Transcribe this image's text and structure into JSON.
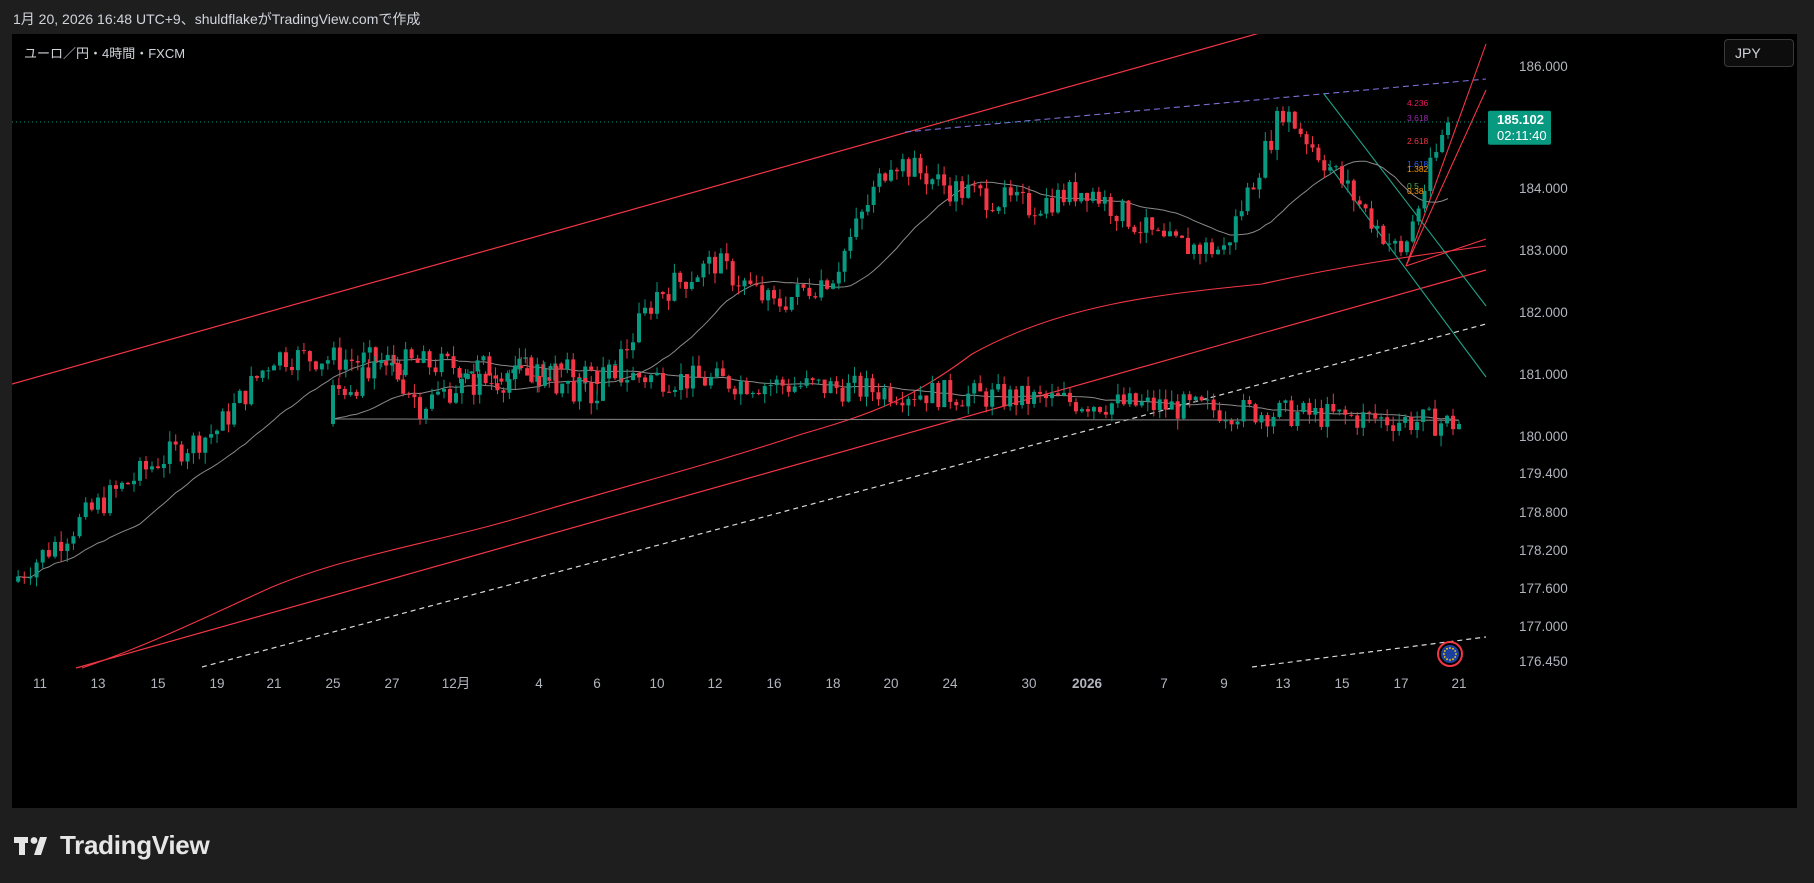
{
  "header": {
    "caption": "1月 20, 2026 16:48 UTC+9、shuldflakeがTradingView.comで作成"
  },
  "symbol": {
    "title": "ユーロ／円・4時間・FXCM"
  },
  "currency_button": {
    "label": "JPY"
  },
  "price_badge": {
    "price": "185.102",
    "countdown": "02:11:40",
    "color": "#089981"
  },
  "brand": {
    "name": "TradingView",
    "logo_icon": "tradingview-logo-icon"
  },
  "news_icon": "eu-flag-icon",
  "chart_data": {
    "type": "candlestick",
    "title": "",
    "x_tick_labels": [
      "11",
      "13",
      "15",
      "19",
      "21",
      "25",
      "27",
      "12月",
      "4",
      "6",
      "10",
      "12",
      "16",
      "18",
      "20",
      "24",
      "30",
      "2026",
      "7",
      "9",
      "13",
      "15",
      "17",
      "21"
    ],
    "y_tick_labels": [
      "186.000",
      "184.000",
      "183.000",
      "182.000",
      "181.000",
      "180.000",
      "179.400",
      "178.800",
      "178.200",
      "177.600",
      "177.000",
      "176.450"
    ],
    "ylim": [
      176.2,
      186.4
    ],
    "last_price": 185.102,
    "colors": {
      "up": "#089981",
      "down": "#f23645",
      "moving_average": "#8a8a8a",
      "channel": "#f23645",
      "fib_channel": "#1ea189",
      "high_line": "#7b6fd6",
      "support": "#d9d9d9"
    },
    "price_path": [
      {
        "x": "11",
        "close": 177.7
      },
      {
        "x": "13",
        "close": 178.9
      },
      {
        "x": "15",
        "close": 179.6
      },
      {
        "x": "19",
        "close": 180.1
      },
      {
        "x": "21",
        "close": 181.3
      },
      {
        "x": "21",
        "close": 180.2
      },
      {
        "x": "25",
        "close": 180.7
      },
      {
        "x": "27",
        "close": 181.1
      },
      {
        "x": "27",
        "close": 180.5
      },
      {
        "x": "12月",
        "close": 180.8
      },
      {
        "x": "4",
        "close": 181.0
      },
      {
        "x": "6",
        "close": 180.6
      },
      {
        "x": "10",
        "close": 182.3
      },
      {
        "x": "12",
        "close": 182.8
      },
      {
        "x": "16",
        "close": 182.1
      },
      {
        "x": "18",
        "close": 182.6
      },
      {
        "x": "20",
        "close": 184.5
      },
      {
        "x": "24",
        "close": 184.0
      },
      {
        "x": "30",
        "close": 183.7
      },
      {
        "x": "2026",
        "close": 184.0
      },
      {
        "x": "7",
        "close": 183.1
      },
      {
        "x": "9",
        "close": 183.0
      },
      {
        "x": "13",
        "close": 185.3
      },
      {
        "x": "15",
        "close": 184.1
      },
      {
        "x": "17",
        "close": 182.9
      },
      {
        "x": "21",
        "close": 185.1
      }
    ],
    "fib_levels": [
      {
        "label": "4.236",
        "color": "#e91e63"
      },
      {
        "label": "3.618",
        "color": "#9c27b0"
      },
      {
        "label": "2.618",
        "color": "#f23645"
      },
      {
        "label": "1.618",
        "color": "#2962ff"
      },
      {
        "label": "1.382",
        "color": "#ff9800"
      },
      {
        "label": "0.5",
        "color": "#4caf50"
      },
      {
        "label": "0.38",
        "color": "#ff9800"
      }
    ]
  }
}
